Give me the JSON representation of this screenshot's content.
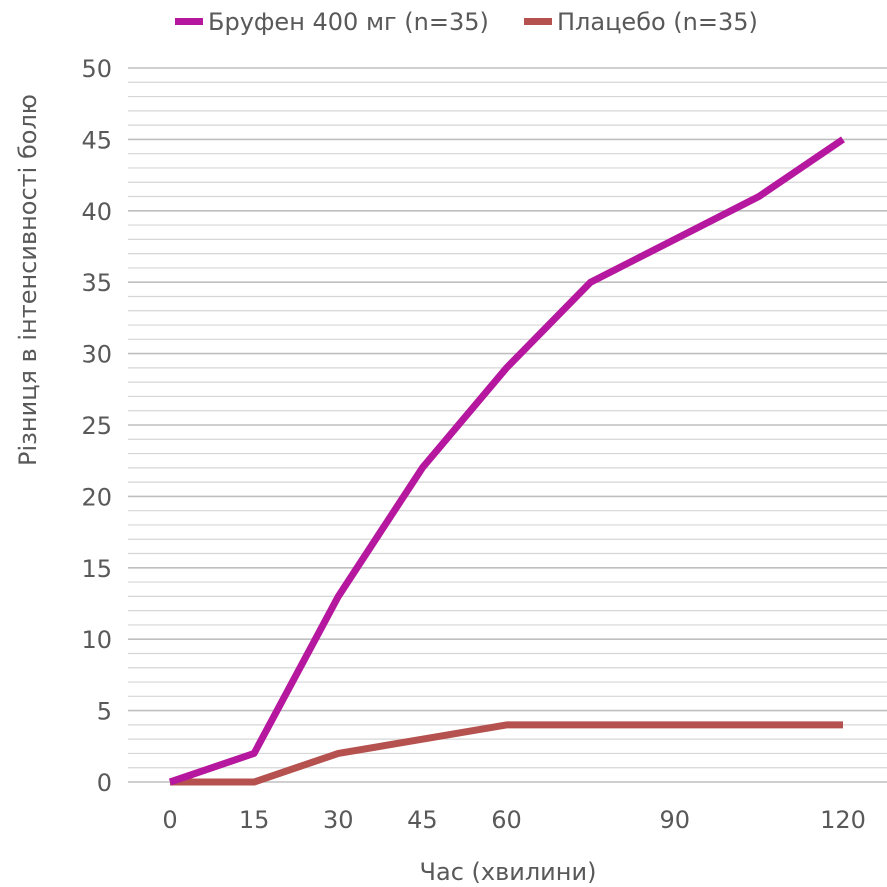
{
  "chart_data": {
    "type": "line",
    "title": "",
    "xlabel": "Час (хвилини)",
    "ylabel": "Різниця в інтенсивності болю",
    "ylim": [
      0,
      50
    ],
    "y_major_step": 5,
    "y_minor_step": 1,
    "grid": true,
    "legend_position": "top",
    "x_tick_labels": [
      "0",
      "15",
      "30",
      "45",
      "60",
      "90",
      "120"
    ],
    "y_tick_labels": [
      "0",
      "5",
      "10",
      "15",
      "20",
      "25",
      "30",
      "35",
      "40",
      "45",
      "50"
    ],
    "x": [
      0,
      15,
      30,
      45,
      60,
      75,
      90,
      105,
      120
    ],
    "series": [
      {
        "name": "Бруфен 400 мг (n=35)",
        "color": "#b5179e",
        "values": [
          0,
          2,
          13,
          22,
          29,
          35,
          38,
          41,
          45
        ]
      },
      {
        "name": "Плацебо (n=35)",
        "color": "#b5524f",
        "values": [
          0,
          0,
          2,
          3,
          4,
          4,
          4,
          4,
          4
        ]
      }
    ]
  }
}
